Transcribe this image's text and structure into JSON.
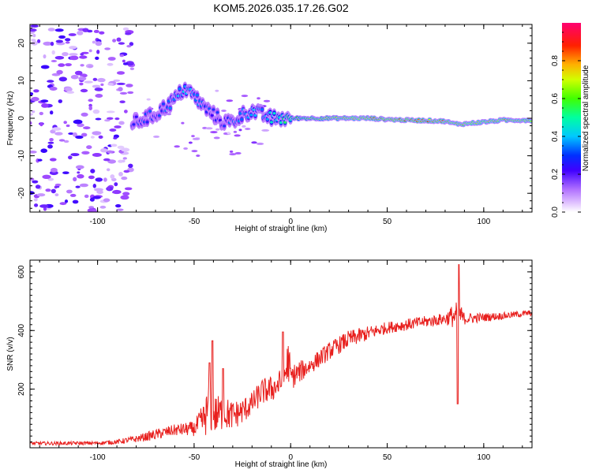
{
  "title": "KOM5.2026.035.17.26.G02",
  "chart_data": [
    {
      "type": "heatmap",
      "name": "spectrogram",
      "xlabel": "Height of straight line (km)",
      "ylabel": "Frequency (Hz)",
      "xlim": [
        -135,
        125
      ],
      "ylim": [
        -25,
        25
      ],
      "xticks": [
        -100,
        -50,
        0,
        50,
        100
      ],
      "yticks": [
        -20,
        -10,
        0,
        10,
        20
      ],
      "xtick_labels": [
        "-100",
        "-50",
        "0",
        "50",
        "100"
      ],
      "ytick_labels": [
        "-20",
        "-10",
        "0",
        "10",
        "20"
      ],
      "colorbar": {
        "label": "Normalized spectral amplitude",
        "range": [
          0,
          1
        ],
        "ticks": [
          0.0,
          0.2,
          0.4,
          0.6,
          0.8
        ],
        "tick_labels": [
          "0.0",
          "0.2",
          "0.4",
          "0.6",
          "0.8"
        ],
        "colors": [
          "#ffffff",
          "#c8a0ff",
          "#7f00ff",
          "#0000ff",
          "#00c8ff",
          "#00ff80",
          "#80ff00",
          "#ffff00",
          "#ff8000",
          "#ff0000",
          "#ff0080"
        ]
      },
      "ridge": {
        "description_points_x": [
          -80,
          -75,
          -70,
          -65,
          -60,
          -55,
          -50,
          -45,
          -40,
          -35,
          -30,
          -25,
          -20,
          -15,
          -10,
          -5,
          0,
          10,
          20,
          30,
          40,
          50,
          60,
          70,
          80,
          85,
          90,
          100,
          110,
          120,
          125
        ],
        "frequency_hz": [
          -1,
          0,
          1,
          3,
          5,
          8,
          6,
          3,
          1,
          -1,
          -1,
          1,
          2,
          1,
          0,
          0,
          0,
          0,
          0,
          0,
          0,
          -0.3,
          -0.5,
          -0.6,
          -0.8,
          -1.5,
          -1.5,
          -1,
          -0.5,
          -0.5,
          -0.5
        ],
        "amplitude": [
          0.3,
          0.35,
          0.3,
          0.35,
          0.4,
          0.45,
          0.4,
          0.35,
          0.3,
          0.3,
          0.35,
          0.4,
          0.45,
          0.4,
          0.5,
          0.55,
          0.6,
          0.7,
          0.75,
          0.8,
          0.85,
          0.9,
          0.9,
          0.9,
          0.85,
          0.8,
          0.85,
          0.8,
          0.85,
          0.8,
          0.8
        ]
      },
      "noise_region_x": [
        -135,
        -82
      ]
    },
    {
      "type": "line",
      "name": "snr",
      "xlabel": "Height of straight line (km)",
      "ylabel": "SNR (v/v)",
      "xlim": [
        -135,
        125
      ],
      "ylim": [
        0,
        640
      ],
      "xticks": [
        -100,
        -50,
        0,
        50,
        100
      ],
      "yticks": [
        200,
        400,
        600
      ],
      "xtick_labels": [
        "-100",
        "-50",
        "0",
        "50",
        "100"
      ],
      "ytick_labels": [
        "200",
        "400",
        "600"
      ],
      "color": "#e8201e",
      "series": [
        {
          "name": "SNR",
          "x": [
            -135,
            -120,
            -100,
            -90,
            -80,
            -70,
            -60,
            -50,
            -45,
            -42,
            -40,
            -35,
            -30,
            -25,
            -20,
            -15,
            -10,
            -5,
            -3,
            -1,
            0,
            10,
            20,
            30,
            40,
            50,
            60,
            70,
            80,
            84,
            86,
            87,
            88,
            90,
            100,
            110,
            125
          ],
          "mean": [
            15,
            15,
            16,
            20,
            30,
            45,
            60,
            65,
            95,
            140,
            110,
            120,
            110,
            125,
            150,
            190,
            200,
            220,
            250,
            300,
            240,
            280,
            330,
            370,
            390,
            410,
            420,
            430,
            440,
            450,
            440,
            460,
            450,
            440,
            445,
            450,
            460
          ],
          "noise": [
            6,
            6,
            6,
            8,
            12,
            18,
            20,
            25,
            60,
            90,
            70,
            60,
            50,
            45,
            40,
            45,
            45,
            50,
            70,
            80,
            45,
            30,
            30,
            30,
            25,
            20,
            20,
            20,
            20,
            40,
            60,
            60,
            40,
            20,
            15,
            12,
            10
          ],
          "peaks": [
            {
              "x": -40.5,
              "y": 365
            },
            {
              "x": -42,
              "y": 290
            },
            {
              "x": -35,
              "y": 270
            },
            {
              "x": -4,
              "y": 395
            },
            {
              "x": 87,
              "y": 625
            },
            {
              "x": 86.5,
              "y": 150
            }
          ]
        }
      ]
    }
  ]
}
